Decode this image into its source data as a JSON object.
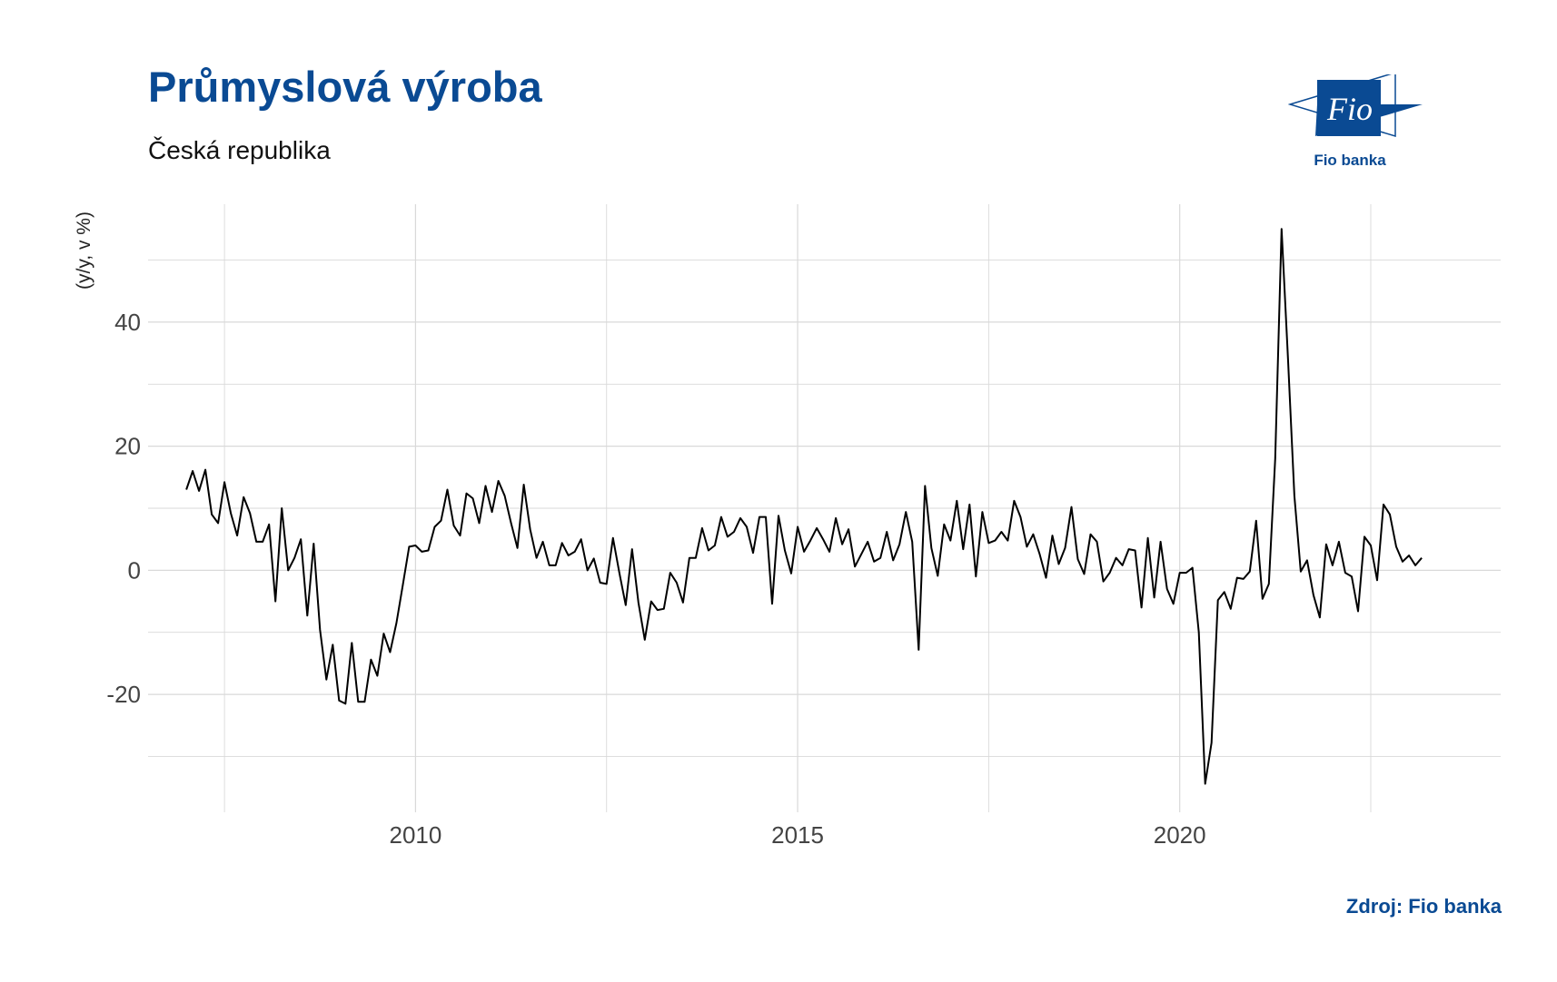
{
  "title": "Průmyslová výroba",
  "subtitle": "Česká republika",
  "source": "Zdroj: Fio banka",
  "logo": {
    "mark_text": "Fio",
    "caption": "Fio banka",
    "color": "#0a4a93"
  },
  "colors": {
    "accent": "#0a4a93",
    "line": "#000000",
    "grid": "#d9d9d9"
  },
  "chart_data": {
    "type": "line",
    "ylabel": "(y/y, v %)",
    "xlabel": "",
    "x_ticks": [
      2010,
      2015,
      2020
    ],
    "y_ticks": [
      -20,
      0,
      20,
      40
    ],
    "xlim": [
      2006.5,
      2024.2
    ],
    "ylim": [
      -39,
      59
    ],
    "grid": true,
    "series": [
      {
        "x_start": 2007.0,
        "x_step_months": 1,
        "values": [
          13,
          16,
          12.8,
          16.2,
          9,
          7.6,
          14.2,
          9.2,
          5.6,
          11.8,
          9.2,
          4.6,
          4.6,
          7.4,
          -5,
          10,
          0,
          2,
          5,
          -7.3,
          4.3,
          -9.6,
          -17.6,
          -12,
          -21,
          -21.5,
          -11.7,
          -21.2,
          -21.2,
          -14.4,
          -17,
          -10.2,
          -13.2,
          -8.5,
          -2.4,
          3.8,
          4,
          3,
          3.2,
          7,
          8,
          13,
          7.2,
          5.6,
          12.4,
          11.6,
          7.6,
          13.6,
          9.4,
          14.4,
          12,
          7.6,
          3.6,
          13.8,
          6.6,
          2,
          4.6,
          0.8,
          0.8,
          4.4,
          2.4,
          3,
          5,
          0,
          1.9,
          -2,
          -2.2,
          5.2,
          -0.4,
          -5.6,
          3.4,
          -5.2,
          -11.2,
          -5,
          -6.4,
          -6.2,
          -0.4,
          -2,
          -5.2,
          2,
          2,
          6.8,
          3.2,
          4,
          8.6,
          5.4,
          6.2,
          8.4,
          7,
          2.8,
          8.6,
          8.6,
          -5.4,
          8.8,
          3.2,
          -0.5,
          7,
          3,
          4.8,
          6.8,
          5,
          3,
          8.4,
          4.2,
          6.6,
          0.6,
          2.6,
          4.6,
          1.4,
          2,
          6.2,
          1.6,
          4.2,
          9.4,
          4.6,
          -12.8,
          13.6,
          3.6,
          -0.9,
          7.4,
          4.8,
          11.2,
          3.4,
          10.6,
          -1,
          9.4,
          4.4,
          4.8,
          6.2,
          4.8,
          11.2,
          8.6,
          3.8,
          5.8,
          2.6,
          -1.2,
          5.6,
          1,
          3.6,
          10.2,
          1.8,
          -0.6,
          5.8,
          4.6,
          -1.8,
          -0.4,
          2,
          0.8,
          3.4,
          3.2,
          -6,
          5.2,
          -4.4,
          4.6,
          -3,
          -5.4,
          -0.4,
          -0.4,
          0.4,
          -10,
          -34.4,
          -27.8,
          -4.8,
          -3.5,
          -6.2,
          -1.2,
          -1.4,
          -0.2,
          8,
          -4.6,
          -2.2,
          18,
          55,
          34,
          12,
          -0.2,
          1.6,
          -4,
          -7.6,
          4.2,
          0.8,
          4.6,
          -0.4,
          -1,
          -6.6,
          5.4,
          4,
          -1.6,
          10.6,
          9,
          3.8,
          1.4,
          2.4,
          0.8,
          2
        ]
      }
    ]
  }
}
